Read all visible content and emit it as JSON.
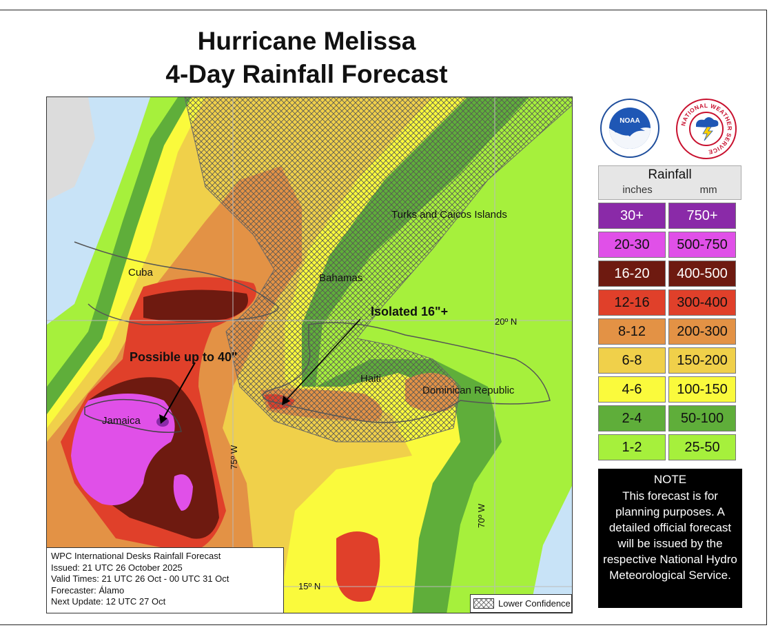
{
  "title": {
    "line1": "Hurricane Melissa",
    "line2": "4-Day Rainfall Forecast"
  },
  "map": {
    "labels": {
      "cuba": "Cuba",
      "bahamas": "Bahamas",
      "turks_caicos": "Turks and Caicos Islands",
      "haiti": "Haiti",
      "dominican_republic": "Dominican Republic",
      "jamaica": "Jamaica"
    },
    "gridlines": {
      "lat20": "20º N",
      "lat15": "15º N",
      "lon75": "75º W",
      "lon70": "70º W"
    },
    "annotations": {
      "possible_40": "Possible up to 40\"",
      "isolated_16": "Isolated 16\"+"
    },
    "colors": {
      "ocean": "#c8e3f7",
      "land_outside": "#dcdcdc",
      "band_1_2": "#a6f03c",
      "band_2_4": "#5fae3a",
      "band_4_6": "#fafa3c",
      "band_6_8": "#f0d04a",
      "band_8_12": "#e39245",
      "band_12_16": "#e0402a",
      "band_16_20": "#6e1a10",
      "band_20_30": "#e050e8",
      "band_30_plus": "#8a2aa8"
    }
  },
  "info_box": {
    "line1": "WPC International Desks Rainfall Forecast",
    "line2": "Issued: 21 UTC 26 October 2025",
    "line3": "Valid Times: 21 UTC 26 Oct - 00 UTC 31 Oct",
    "line4": "Forecaster: Álamo",
    "line5": "Next Update: 12 UTC 27 Oct"
  },
  "lower_confidence": "Lower Confidence",
  "logos": {
    "noaa": "NOAA",
    "nws": "NATIONAL WEATHER SERVICE"
  },
  "legend": {
    "title": "Rainfall",
    "unit_in": "inches",
    "unit_mm": "mm",
    "rows": [
      {
        "inches": "30+",
        "mm": "750+",
        "color": "#8a2aa8",
        "text": "#ffffff"
      },
      {
        "inches": "20-30",
        "mm": "500-750",
        "color": "#e050e8",
        "text": "#111111"
      },
      {
        "inches": "16-20",
        "mm": "400-500",
        "color": "#6e1a10",
        "text": "#ffffff"
      },
      {
        "inches": "12-16",
        "mm": "300-400",
        "color": "#e0402a",
        "text": "#111111"
      },
      {
        "inches": "8-12",
        "mm": "200-300",
        "color": "#e39245",
        "text": "#111111"
      },
      {
        "inches": "6-8",
        "mm": "150-200",
        "color": "#f0d04a",
        "text": "#111111"
      },
      {
        "inches": "4-6",
        "mm": "100-150",
        "color": "#fafa3c",
        "text": "#111111"
      },
      {
        "inches": "2-4",
        "mm": "50-100",
        "color": "#5fae3a",
        "text": "#111111"
      },
      {
        "inches": "1-2",
        "mm": "25-50",
        "color": "#a6f03c",
        "text": "#111111"
      }
    ]
  },
  "note": {
    "heading": "NOTE",
    "body": "This forecast is for planning purposes. A detailed official forecast will be issued by the respective National Hydro Meteorological Service."
  }
}
